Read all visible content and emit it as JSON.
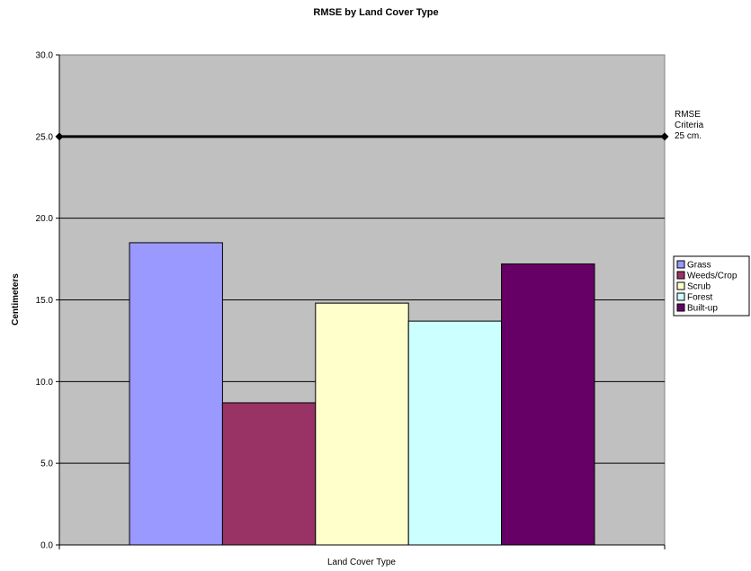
{
  "chart_data": {
    "type": "bar",
    "title": "RMSE by Land Cover Type",
    "xlabel": "Land Cover Type",
    "ylabel": "Centimeters",
    "ylim": [
      0,
      30
    ],
    "ytick_step": 5,
    "ytick_labels": [
      "0.0",
      "5.0",
      "10.0",
      "15.0",
      "20.0",
      "25.0",
      "30.0"
    ],
    "grid": true,
    "legend_position": "right",
    "plot_background": "#c0c0c0",
    "series": [
      {
        "name": "Grass",
        "value": 18.5,
        "color": "#9999ff"
      },
      {
        "name": "Weeds/Crop",
        "value": 8.7,
        "color": "#993366"
      },
      {
        "name": "Scrub",
        "value": 14.8,
        "color": "#ffffcc"
      },
      {
        "name": "Forest",
        "value": 13.7,
        "color": "#ccffff"
      },
      {
        "name": "Built-up",
        "value": 17.2,
        "color": "#660066"
      }
    ],
    "reference_line": {
      "value": 25,
      "label_lines": [
        "RMSE",
        "Criteria",
        "25 cm."
      ]
    }
  }
}
